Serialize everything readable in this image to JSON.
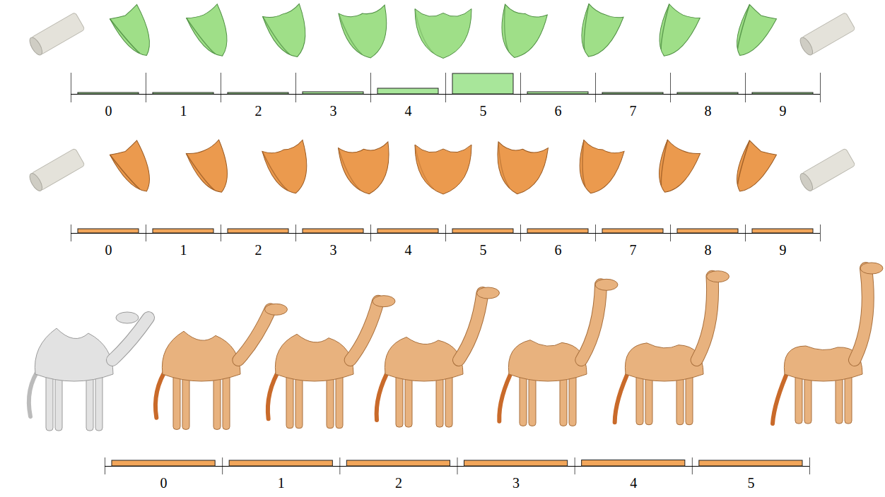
{
  "chart_data": [
    {
      "type": "bar",
      "categories": [
        "0",
        "1",
        "2",
        "3",
        "4",
        "5",
        "6",
        "7",
        "8",
        "9"
      ],
      "values": [
        2,
        2,
        2,
        3,
        8,
        29,
        3,
        2,
        2,
        2
      ],
      "color": "#a8e69a",
      "ylim": [
        0,
        30
      ],
      "tick_labels": "x"
    },
    {
      "type": "bar",
      "categories": [
        "0",
        "1",
        "2",
        "3",
        "4",
        "5",
        "6",
        "7",
        "8",
        "9"
      ],
      "values": [
        6,
        6,
        6,
        6,
        6,
        6,
        6,
        6,
        6,
        6
      ],
      "color": "#f2a65a",
      "ylim": [
        0,
        12
      ],
      "tick_labels": "x"
    },
    {
      "type": "bar",
      "categories": [
        "0",
        "1",
        "2",
        "3",
        "4",
        "5"
      ],
      "values": [
        8,
        8,
        8,
        8,
        8.5,
        8
      ],
      "color": "#f2a65a",
      "ylim": [
        0,
        12
      ],
      "tick_labels": "x"
    }
  ]
}
